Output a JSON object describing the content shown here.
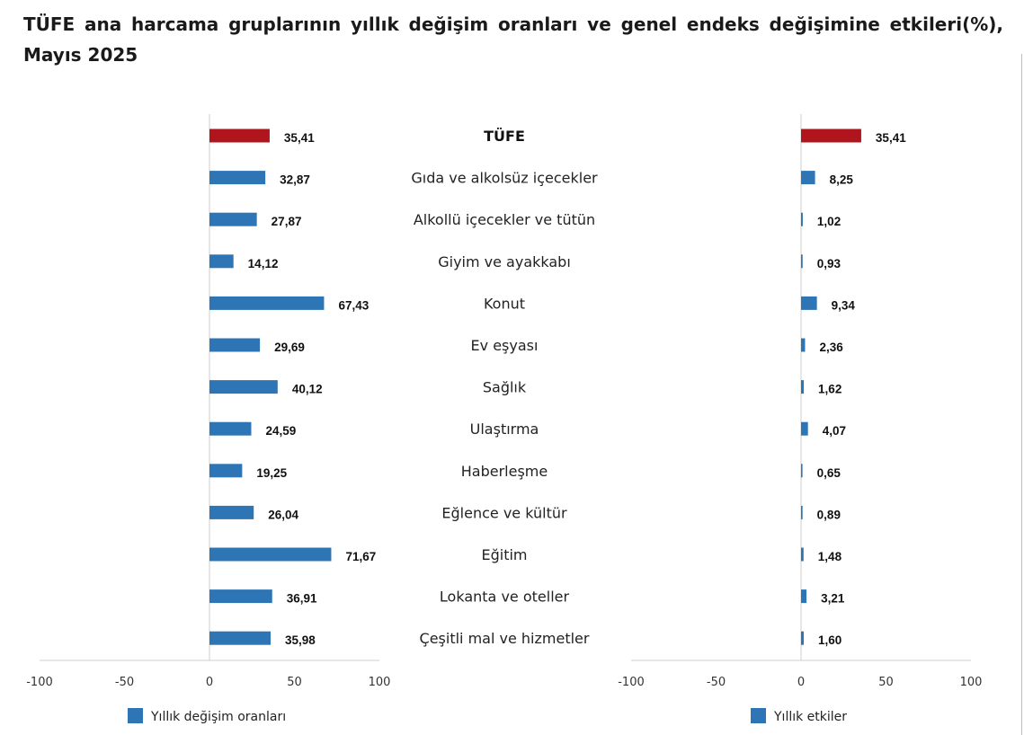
{
  "title": "TÜFE ana harcama gruplarının yıllık değişim oranları ve genel endeks değişimine etkileri(%), Mayıs 2025",
  "colors": {
    "highlight": "#b0141c",
    "bar": "#2e75b6",
    "axis": "#cfcfcf"
  },
  "chart_data": [
    {
      "type": "bar",
      "orientation": "horizontal",
      "categories": [
        "TÜFE",
        "Gıda ve alkolsüz içecekler",
        "Alkollü içecekler ve tütün",
        "Giyim ve ayakkabı",
        "Konut",
        "Ev eşyası",
        "Sağlık",
        "Ulaştırma",
        "Haberleşme",
        "Eğlence ve kültür",
        "Eğitim",
        "Lokanta ve oteller",
        "Çeşitli mal ve hizmetler"
      ],
      "series": [
        {
          "name": "Yıllık değişim oranları",
          "values": [
            35.41,
            32.87,
            27.87,
            14.12,
            67.43,
            29.69,
            40.12,
            24.59,
            19.25,
            26.04,
            71.67,
            36.91,
            35.98
          ]
        }
      ],
      "value_labels": [
        "35,41",
        "32,87",
        "27,87",
        "14,12",
        "67,43",
        "29,69",
        "40,12",
        "24,59",
        "19,25",
        "26,04",
        "71,67",
        "36,91",
        "35,98"
      ],
      "xlim": [
        -100,
        100
      ],
      "xticks": [
        "-100",
        "-50",
        "0",
        "50",
        "100"
      ],
      "highlight_category": "TÜFE",
      "legend": "bottom"
    },
    {
      "type": "bar",
      "orientation": "horizontal",
      "categories": [
        "TÜFE",
        "Gıda ve alkolsüz içecekler",
        "Alkollü içecekler ve tütün",
        "Giyim ve ayakkabı",
        "Konut",
        "Ev eşyası",
        "Sağlık",
        "Ulaştırma",
        "Haberleşme",
        "Eğlence ve kültür",
        "Eğitim",
        "Lokanta ve oteller",
        "Çeşitli mal ve hizmetler"
      ],
      "series": [
        {
          "name": "Yıllık etkiler",
          "values": [
            35.41,
            8.25,
            1.02,
            0.93,
            9.34,
            2.36,
            1.62,
            4.07,
            0.65,
            0.89,
            1.48,
            3.21,
            1.6
          ]
        }
      ],
      "value_labels": [
        "35,41",
        "8,25",
        "1,02",
        "0,93",
        "9,34",
        "2,36",
        "1,62",
        "4,07",
        "0,65",
        "0,89",
        "1,48",
        "3,21",
        "1,60"
      ],
      "xlim": [
        -100,
        100
      ],
      "xticks": [
        "-100",
        "-50",
        "0",
        "50",
        "100"
      ],
      "highlight_category": "TÜFE",
      "legend": "bottom"
    }
  ]
}
